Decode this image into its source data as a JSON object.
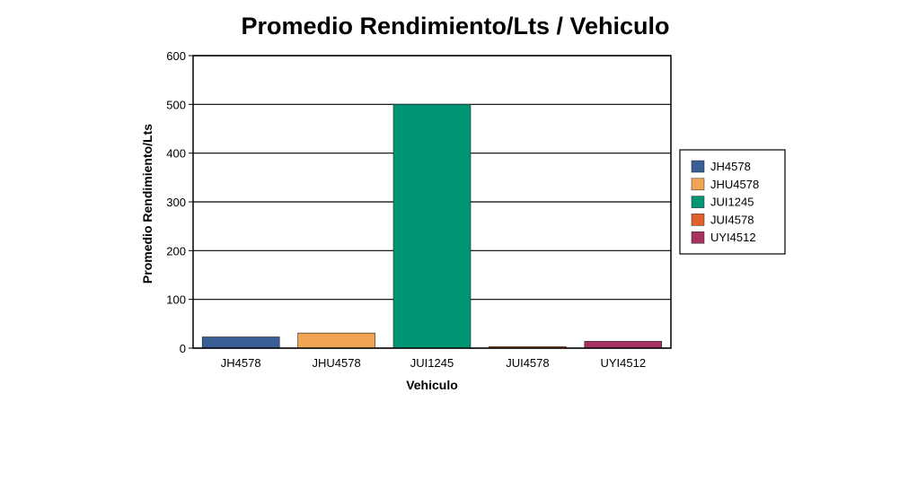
{
  "chart_data": {
    "type": "bar",
    "title": "Promedio Rendimiento/Lts / Vehiculo",
    "xlabel": "Vehiculo",
    "ylabel": "Promedio Rendimiento/Lts",
    "categories": [
      "JH4578",
      "JHU4578",
      "JUI1245",
      "JUI4578",
      "UYI4512"
    ],
    "values": [
      23,
      31,
      500,
      3,
      14
    ],
    "colors": [
      "#3a5f96",
      "#f0a552",
      "#009673",
      "#e0622a",
      "#a8325f"
    ],
    "ylim": [
      0,
      600
    ],
    "yticks": [
      0,
      100,
      200,
      300,
      400,
      500,
      600
    ],
    "grid": "horizontal",
    "legend": {
      "position": "right",
      "entries": [
        "JH4578",
        "JHU4578",
        "JUI1245",
        "JUI4578",
        "UYI4512"
      ]
    }
  }
}
